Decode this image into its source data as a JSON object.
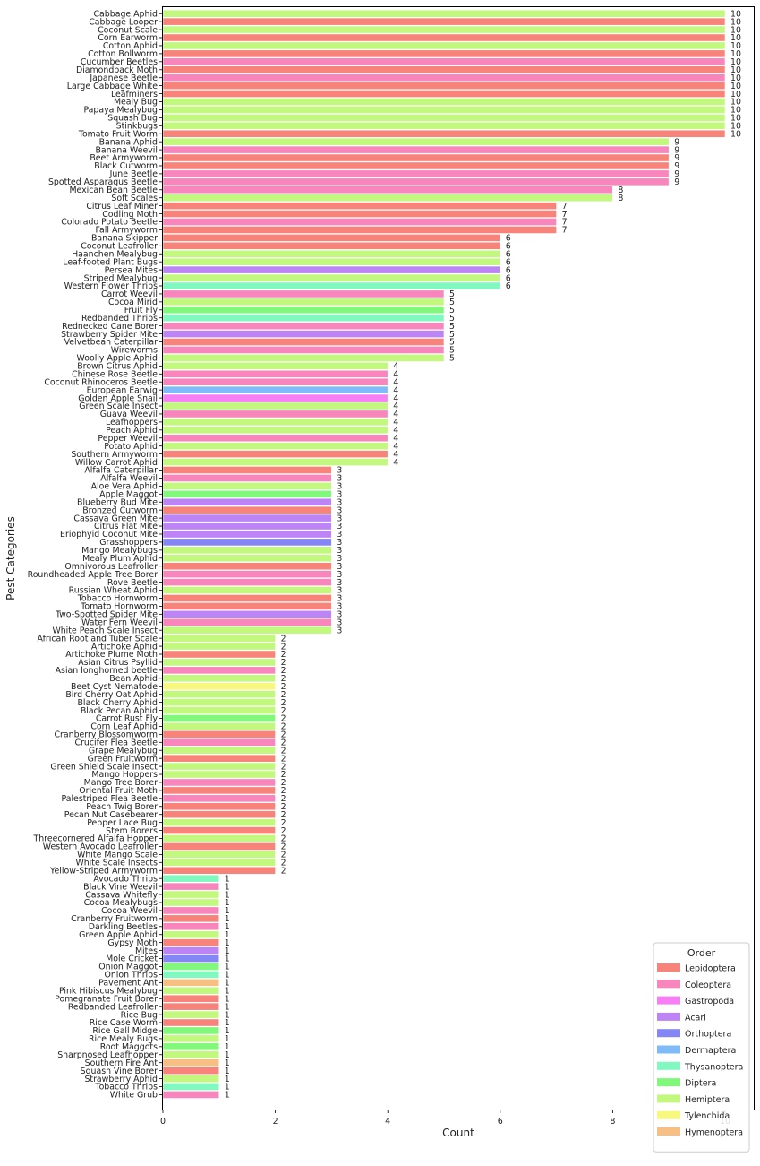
{
  "chart_data": {
    "type": "bar",
    "orientation": "horizontal",
    "xlabel": "Count",
    "ylabel": "Pest Categories",
    "xlim": [
      0,
      10.5
    ],
    "xticks": [
      0,
      2,
      4,
      6,
      8,
      10
    ],
    "grid": false,
    "legend": {
      "title": "Order",
      "position": "bottom-right",
      "entries": [
        {
          "name": "Lepidoptera",
          "color": "#f8837b"
        },
        {
          "name": "Coleoptera",
          "color": "#f985bd"
        },
        {
          "name": "Gastropoda",
          "color": "#f77ef5"
        },
        {
          "name": "Acari",
          "color": "#bd84f5"
        },
        {
          "name": "Orthoptera",
          "color": "#8386f4"
        },
        {
          "name": "Dermaptera",
          "color": "#7fbbf9"
        },
        {
          "name": "Thysanoptera",
          "color": "#82f8c1"
        },
        {
          "name": "Diptera",
          "color": "#81f77c"
        },
        {
          "name": "Hemiptera",
          "color": "#c2f87d"
        },
        {
          "name": "Tylenchida",
          "color": "#f8f881"
        },
        {
          "name": "Hymenoptera",
          "color": "#f8bf84"
        }
      ]
    },
    "bars": [
      {
        "name": "Cabbage Aphid",
        "value": 10,
        "order": "Hemiptera"
      },
      {
        "name": "Cabbage Looper",
        "value": 10,
        "order": "Lepidoptera"
      },
      {
        "name": "Coconut Scale",
        "value": 10,
        "order": "Hemiptera"
      },
      {
        "name": "Corn Earworm",
        "value": 10,
        "order": "Lepidoptera"
      },
      {
        "name": "Cotton Aphid",
        "value": 10,
        "order": "Hemiptera"
      },
      {
        "name": "Cotton Bollworm",
        "value": 10,
        "order": "Lepidoptera"
      },
      {
        "name": "Cucumber Beetles",
        "value": 10,
        "order": "Coleoptera"
      },
      {
        "name": "Diamondback Moth",
        "value": 10,
        "order": "Lepidoptera"
      },
      {
        "name": "Japanese Beetle",
        "value": 10,
        "order": "Coleoptera"
      },
      {
        "name": "Large Cabbage White",
        "value": 10,
        "order": "Lepidoptera"
      },
      {
        "name": "Leafminers",
        "value": 10,
        "order": "Lepidoptera"
      },
      {
        "name": "Mealy Bug",
        "value": 10,
        "order": "Hemiptera"
      },
      {
        "name": "Papaya Mealybug",
        "value": 10,
        "order": "Hemiptera"
      },
      {
        "name": "Squash Bug",
        "value": 10,
        "order": "Hemiptera"
      },
      {
        "name": "Stinkbugs",
        "value": 10,
        "order": "Hemiptera"
      },
      {
        "name": "Tomato Fruit Worm",
        "value": 10,
        "order": "Lepidoptera"
      },
      {
        "name": "Banana Aphid",
        "value": 9,
        "order": "Hemiptera"
      },
      {
        "name": "Banana Weevil",
        "value": 9,
        "order": "Coleoptera"
      },
      {
        "name": "Beet Armyworm",
        "value": 9,
        "order": "Lepidoptera"
      },
      {
        "name": "Black Cutworm",
        "value": 9,
        "order": "Lepidoptera"
      },
      {
        "name": "June Beetle",
        "value": 9,
        "order": "Coleoptera"
      },
      {
        "name": "Spotted Asparagus Beetle",
        "value": 9,
        "order": "Coleoptera"
      },
      {
        "name": "Mexican Bean Beetle",
        "value": 8,
        "order": "Coleoptera"
      },
      {
        "name": "Soft Scales",
        "value": 8,
        "order": "Hemiptera"
      },
      {
        "name": "Citrus Leaf Miner",
        "value": 7,
        "order": "Lepidoptera"
      },
      {
        "name": "Codling Moth",
        "value": 7,
        "order": "Lepidoptera"
      },
      {
        "name": "Colorado Potato Beetle",
        "value": 7,
        "order": "Coleoptera"
      },
      {
        "name": "Fall Armyworm",
        "value": 7,
        "order": "Lepidoptera"
      },
      {
        "name": "Banana Skipper",
        "value": 6,
        "order": "Lepidoptera"
      },
      {
        "name": "Coconut Leafroller",
        "value": 6,
        "order": "Lepidoptera"
      },
      {
        "name": "Haanchen Mealybug",
        "value": 6,
        "order": "Hemiptera"
      },
      {
        "name": "Leaf-footed Plant Bugs",
        "value": 6,
        "order": "Hemiptera"
      },
      {
        "name": "Persea Mites",
        "value": 6,
        "order": "Acari"
      },
      {
        "name": "Striped Mealybug",
        "value": 6,
        "order": "Hemiptera"
      },
      {
        "name": "Western Flower Thrips",
        "value": 6,
        "order": "Thysanoptera"
      },
      {
        "name": "Carrot Weevil",
        "value": 5,
        "order": "Coleoptera"
      },
      {
        "name": "Cocoa Mirid",
        "value": 5,
        "order": "Hemiptera"
      },
      {
        "name": "Fruit Fly",
        "value": 5,
        "order": "Diptera"
      },
      {
        "name": "Redbanded Thrips",
        "value": 5,
        "order": "Thysanoptera"
      },
      {
        "name": "Rednecked Cane Borer",
        "value": 5,
        "order": "Coleoptera"
      },
      {
        "name": "Strawberry Spider Mite",
        "value": 5,
        "order": "Acari"
      },
      {
        "name": "Velvetbean Caterpillar",
        "value": 5,
        "order": "Lepidoptera"
      },
      {
        "name": "Wireworms",
        "value": 5,
        "order": "Coleoptera"
      },
      {
        "name": "Woolly Apple Aphid",
        "value": 5,
        "order": "Hemiptera"
      },
      {
        "name": "Brown Citrus Aphid",
        "value": 4,
        "order": "Hemiptera"
      },
      {
        "name": "Chinese Rose Beetle",
        "value": 4,
        "order": "Coleoptera"
      },
      {
        "name": "Coconut Rhinoceros Beetle",
        "value": 4,
        "order": "Coleoptera"
      },
      {
        "name": "European Earwig",
        "value": 4,
        "order": "Dermaptera"
      },
      {
        "name": "Golden Apple Snail",
        "value": 4,
        "order": "Gastropoda"
      },
      {
        "name": "Green Scale Insect",
        "value": 4,
        "order": "Hemiptera"
      },
      {
        "name": "Guava Weevil",
        "value": 4,
        "order": "Coleoptera"
      },
      {
        "name": "Leafhoppers",
        "value": 4,
        "order": "Hemiptera"
      },
      {
        "name": "Peach Aphid",
        "value": 4,
        "order": "Hemiptera"
      },
      {
        "name": "Pepper Weevil",
        "value": 4,
        "order": "Coleoptera"
      },
      {
        "name": "Potato Aphid",
        "value": 4,
        "order": "Hemiptera"
      },
      {
        "name": "Southern Armyworm",
        "value": 4,
        "order": "Lepidoptera"
      },
      {
        "name": "Willow Carrot Aphid",
        "value": 4,
        "order": "Hemiptera"
      },
      {
        "name": "Alfalfa Caterpillar",
        "value": 3,
        "order": "Lepidoptera"
      },
      {
        "name": "Alfalfa Weevil",
        "value": 3,
        "order": "Coleoptera"
      },
      {
        "name": "Aloe Vera Aphid",
        "value": 3,
        "order": "Hemiptera"
      },
      {
        "name": "Apple Maggot",
        "value": 3,
        "order": "Diptera"
      },
      {
        "name": "Blueberry Bud Mite",
        "value": 3,
        "order": "Acari"
      },
      {
        "name": "Bronzed Cutworm",
        "value": 3,
        "order": "Lepidoptera"
      },
      {
        "name": "Cassava Green Mite",
        "value": 3,
        "order": "Acari"
      },
      {
        "name": "Citrus Flat Mite",
        "value": 3,
        "order": "Acari"
      },
      {
        "name": "Eriophyid Coconut Mite",
        "value": 3,
        "order": "Acari"
      },
      {
        "name": "Grasshoppers",
        "value": 3,
        "order": "Orthoptera"
      },
      {
        "name": "Mango Mealybugs",
        "value": 3,
        "order": "Hemiptera"
      },
      {
        "name": "Mealy Plum Aphid",
        "value": 3,
        "order": "Hemiptera"
      },
      {
        "name": "Omnivorous Leafroller",
        "value": 3,
        "order": "Lepidoptera"
      },
      {
        "name": "Roundheaded Apple Tree Borer",
        "value": 3,
        "order": "Coleoptera"
      },
      {
        "name": "Rove Beetle",
        "value": 3,
        "order": "Coleoptera"
      },
      {
        "name": "Russian Wheat Aphid",
        "value": 3,
        "order": "Hemiptera"
      },
      {
        "name": "Tobacco Hornworm",
        "value": 3,
        "order": "Lepidoptera"
      },
      {
        "name": "Tomato Hornworm",
        "value": 3,
        "order": "Lepidoptera"
      },
      {
        "name": "Two-Spotted Spider Mite",
        "value": 3,
        "order": "Acari"
      },
      {
        "name": "Water Fern Weevil",
        "value": 3,
        "order": "Coleoptera"
      },
      {
        "name": "White Peach Scale Insect",
        "value": 3,
        "order": "Hemiptera"
      },
      {
        "name": "African Root and Tuber Scale",
        "value": 2,
        "order": "Hemiptera"
      },
      {
        "name": "Artichoke Aphid",
        "value": 2,
        "order": "Hemiptera"
      },
      {
        "name": "Artichoke Plume Moth",
        "value": 2,
        "order": "Lepidoptera"
      },
      {
        "name": "Asian Citrus Psyllid",
        "value": 2,
        "order": "Hemiptera"
      },
      {
        "name": "Asian longhorned beetle",
        "value": 2,
        "order": "Coleoptera"
      },
      {
        "name": "Bean Aphid",
        "value": 2,
        "order": "Hemiptera"
      },
      {
        "name": "Beet Cyst Nematode",
        "value": 2,
        "order": "Tylenchida"
      },
      {
        "name": "Bird Cherry Oat Aphid",
        "value": 2,
        "order": "Hemiptera"
      },
      {
        "name": "Black Cherry Aphid",
        "value": 2,
        "order": "Hemiptera"
      },
      {
        "name": "Black Pecan Aphid",
        "value": 2,
        "order": "Hemiptera"
      },
      {
        "name": "Carrot Rust Fly",
        "value": 2,
        "order": "Diptera"
      },
      {
        "name": "Corn Leaf Aphid",
        "value": 2,
        "order": "Hemiptera"
      },
      {
        "name": "Cranberry Blossomworm",
        "value": 2,
        "order": "Lepidoptera"
      },
      {
        "name": "Crucifer Flea Beetle",
        "value": 2,
        "order": "Coleoptera"
      },
      {
        "name": "Grape Mealybug",
        "value": 2,
        "order": "Hemiptera"
      },
      {
        "name": "Green Fruitworm",
        "value": 2,
        "order": "Lepidoptera"
      },
      {
        "name": "Green Shield Scale Insect",
        "value": 2,
        "order": "Hemiptera"
      },
      {
        "name": "Mango Hoppers",
        "value": 2,
        "order": "Hemiptera"
      },
      {
        "name": "Mango Tree Borer",
        "value": 2,
        "order": "Coleoptera"
      },
      {
        "name": "Oriental Fruit Moth",
        "value": 2,
        "order": "Lepidoptera"
      },
      {
        "name": "Palestriped Flea Beetle",
        "value": 2,
        "order": "Coleoptera"
      },
      {
        "name": "Peach Twig Borer",
        "value": 2,
        "order": "Lepidoptera"
      },
      {
        "name": "Pecan Nut Casebearer",
        "value": 2,
        "order": "Lepidoptera"
      },
      {
        "name": "Pepper Lace Bug",
        "value": 2,
        "order": "Hemiptera"
      },
      {
        "name": "Stem Borers",
        "value": 2,
        "order": "Lepidoptera"
      },
      {
        "name": "Threecornered Alfalfa Hopper",
        "value": 2,
        "order": "Hemiptera"
      },
      {
        "name": "Western Avocado Leafroller",
        "value": 2,
        "order": "Lepidoptera"
      },
      {
        "name": "White Mango Scale",
        "value": 2,
        "order": "Hemiptera"
      },
      {
        "name": "White Scale Insects",
        "value": 2,
        "order": "Hemiptera"
      },
      {
        "name": "Yellow-Striped Armyworm",
        "value": 2,
        "order": "Lepidoptera"
      },
      {
        "name": "Avocado Thrips",
        "value": 1,
        "order": "Thysanoptera"
      },
      {
        "name": "Black Vine Weevil",
        "value": 1,
        "order": "Coleoptera"
      },
      {
        "name": "Cassava Whitefly",
        "value": 1,
        "order": "Hemiptera"
      },
      {
        "name": "Cocoa Mealybugs",
        "value": 1,
        "order": "Hemiptera"
      },
      {
        "name": "Cocoa Weevil",
        "value": 1,
        "order": "Coleoptera"
      },
      {
        "name": "Cranberry Fruitworm",
        "value": 1,
        "order": "Lepidoptera"
      },
      {
        "name": "Darkling Beetles",
        "value": 1,
        "order": "Coleoptera"
      },
      {
        "name": "Green Apple Aphid",
        "value": 1,
        "order": "Hemiptera"
      },
      {
        "name": "Gypsy Moth",
        "value": 1,
        "order": "Lepidoptera"
      },
      {
        "name": "Mites",
        "value": 1,
        "order": "Acari"
      },
      {
        "name": "Mole Cricket",
        "value": 1,
        "order": "Orthoptera"
      },
      {
        "name": "Onion Maggot",
        "value": 1,
        "order": "Diptera"
      },
      {
        "name": "Onion Thrips",
        "value": 1,
        "order": "Thysanoptera"
      },
      {
        "name": "Pavement Ant",
        "value": 1,
        "order": "Hymenoptera"
      },
      {
        "name": "Pink Hibiscus Mealybug",
        "value": 1,
        "order": "Hemiptera"
      },
      {
        "name": "Pomegranate Fruit Borer",
        "value": 1,
        "order": "Lepidoptera"
      },
      {
        "name": "Redbanded Leafroller",
        "value": 1,
        "order": "Lepidoptera"
      },
      {
        "name": "Rice Bug",
        "value": 1,
        "order": "Hemiptera"
      },
      {
        "name": "Rice Case Worm",
        "value": 1,
        "order": "Lepidoptera"
      },
      {
        "name": "Rice Gall Midge",
        "value": 1,
        "order": "Diptera"
      },
      {
        "name": "Rice Mealy Bugs",
        "value": 1,
        "order": "Hemiptera"
      },
      {
        "name": "Root Maggots",
        "value": 1,
        "order": "Diptera"
      },
      {
        "name": "Sharpnosed Leafhopper",
        "value": 1,
        "order": "Hemiptera"
      },
      {
        "name": "Southern Fire Ant",
        "value": 1,
        "order": "Hymenoptera"
      },
      {
        "name": "Squash Vine Borer",
        "value": 1,
        "order": "Lepidoptera"
      },
      {
        "name": "Strawberry Aphid",
        "value": 1,
        "order": "Hemiptera"
      },
      {
        "name": "Tobacco Thrips",
        "value": 1,
        "order": "Thysanoptera"
      },
      {
        "name": "White Grub",
        "value": 1,
        "order": "Coleoptera"
      }
    ]
  }
}
